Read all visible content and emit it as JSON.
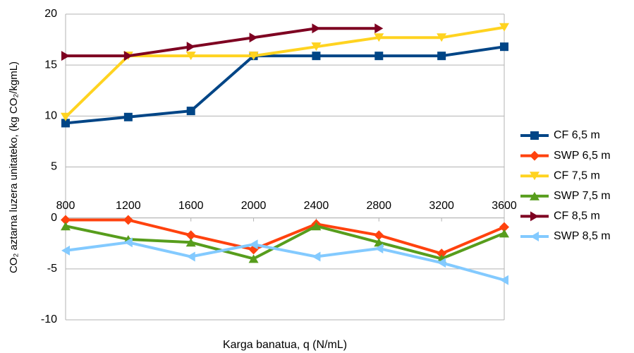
{
  "chart_data": {
    "type": "line",
    "x_label": "Karga banatua, q (N/mL)",
    "y_label": "CO₂ aztarna luzera unitateko, (kg CO₂/kgmL)",
    "x": [
      800,
      1200,
      1600,
      2000,
      2400,
      2800,
      3200,
      3600
    ],
    "xlim": [
      800,
      3600
    ],
    "xticks": [
      800,
      1200,
      1600,
      2000,
      2400,
      2800,
      3200,
      3600
    ],
    "ylim": [
      -10,
      20
    ],
    "yticks": [
      -10,
      -5,
      0,
      5,
      10,
      15,
      20
    ],
    "grid": true,
    "legend": "right",
    "series": [
      {
        "name": "CF 6,5 m",
        "color": "#004586",
        "marker": "square",
        "values": [
          9.3,
          9.9,
          10.5,
          15.9,
          15.9,
          15.9,
          15.9,
          16.8
        ]
      },
      {
        "name": "SWP 6,5 m",
        "color": "#ff420e",
        "marker": "diamond",
        "values": [
          -0.2,
          -0.2,
          -1.7,
          -3.1,
          -0.6,
          -1.7,
          -3.5,
          -0.9
        ]
      },
      {
        "name": "CF 7,5 m",
        "color": "#ffd320",
        "marker": "triangle-down",
        "values": [
          9.9,
          15.9,
          15.9,
          15.9,
          16.8,
          17.7,
          17.7,
          18.7
        ]
      },
      {
        "name": "SWP 7,5 m",
        "color": "#579d1c",
        "marker": "triangle-up",
        "values": [
          -0.8,
          -2.1,
          -2.4,
          -4.0,
          -0.8,
          -2.4,
          -4.0,
          -1.5
        ]
      },
      {
        "name": "CF 8,5 m",
        "color": "#7e0021",
        "marker": "triangle-right",
        "values": [
          15.9,
          15.9,
          16.8,
          17.7,
          18.6,
          18.6,
          null,
          null
        ]
      },
      {
        "name": "SWP 8,5 m",
        "color": "#83caff",
        "marker": "triangle-left",
        "values": [
          -3.2,
          -2.4,
          -3.8,
          -2.6,
          -3.8,
          -3.0,
          -4.4,
          -6.1
        ]
      }
    ]
  }
}
